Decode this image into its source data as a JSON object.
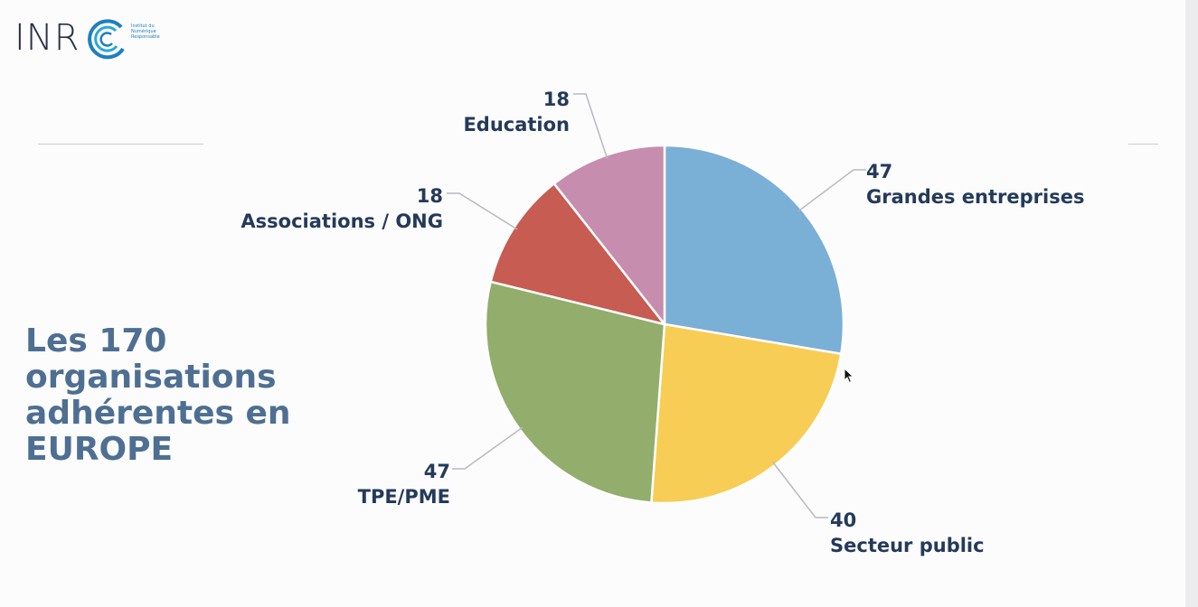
{
  "logo": {
    "wordmark": "INR",
    "tagline": "Institut du Numérique Responsable"
  },
  "slide": {
    "title": "Les 170 organisations adhérentes en EUROPE"
  },
  "chart_data": {
    "type": "pie",
    "title": "",
    "start_angle_deg": 0,
    "direction": "clockwise",
    "slices": [
      {
        "label": "Grandes entreprises",
        "value": 47,
        "color": "#7aafd6"
      },
      {
        "label": "Secteur public",
        "value": 40,
        "color": "#f8cd55"
      },
      {
        "label": "TPE/PME",
        "value": 47,
        "color": "#92ad6c"
      },
      {
        "label": "Associations / ONG",
        "value": 18,
        "color": "#c65c52"
      },
      {
        "label": "Education",
        "value": 18,
        "color": "#c78dae"
      }
    ]
  }
}
